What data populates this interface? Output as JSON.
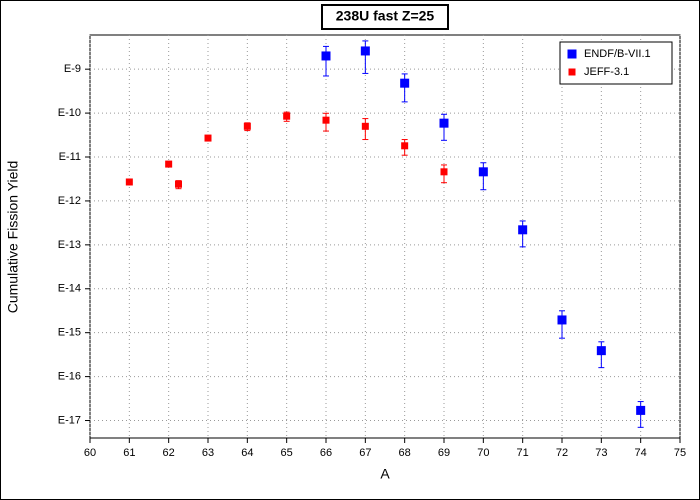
{
  "chart_data": {
    "type": "scatter",
    "title": "238U fast Z=25",
    "x_label": "A",
    "y_label": "Cumulative Fission Yield",
    "xlim": [
      60,
      75
    ],
    "xticks": [
      60,
      61,
      62,
      63,
      64,
      65,
      66,
      67,
      68,
      69,
      70,
      71,
      72,
      73,
      74,
      75
    ],
    "ylim": [
      4e-18,
      6e-09
    ],
    "log_y": true,
    "grid": true,
    "legend": "top-right",
    "yticks": [
      {
        "value": 1e-09,
        "label": "E-9"
      },
      {
        "value": 1e-10,
        "label": "E-10"
      },
      {
        "value": 1e-11,
        "label": "E-11"
      },
      {
        "value": 1e-12,
        "label": "E-12"
      },
      {
        "value": 1e-13,
        "label": "E-13"
      },
      {
        "value": 1e-14,
        "label": "E-14"
      },
      {
        "value": 1e-15,
        "label": "E-15"
      },
      {
        "value": 1e-16,
        "label": "E-16"
      },
      {
        "value": 1e-17,
        "label": "E-17"
      }
    ],
    "series": [
      {
        "name": "ENDF/B-VII.1",
        "color": "#0000ff",
        "marker_size": 9,
        "x": [
          66,
          67,
          68,
          69,
          70,
          71,
          72,
          73,
          74
        ],
        "values": [
          2e-09,
          2.6e-09,
          4.8e-10,
          5.9e-11,
          4.6e-12,
          2.2e-13,
          1.95e-15,
          3.9e-16,
          1.7e-17
        ],
        "errors": [
          1.3e-09,
          1.8e-09,
          3e-10,
          3.5e-11,
          2.8e-12,
          1.3e-13,
          1.2e-15,
          2.3e-16,
          1e-17
        ]
      },
      {
        "name": "JEFF-3.1",
        "color": "#ff0000",
        "marker_size": 7,
        "x": [
          61,
          62,
          62.25,
          63,
          64,
          65,
          66,
          67,
          68,
          69
        ],
        "values": [
          2.7e-12,
          6.9e-12,
          2.4e-12,
          2.7e-11,
          5e-11,
          8.5e-11,
          6.9e-11,
          5e-11,
          1.8e-11,
          4.6e-12
        ],
        "errors": [
          2e-13,
          6e-13,
          5e-13,
          2e-12,
          1e-11,
          2e-11,
          3e-11,
          2.5e-11,
          7e-12,
          2e-12
        ]
      }
    ]
  }
}
